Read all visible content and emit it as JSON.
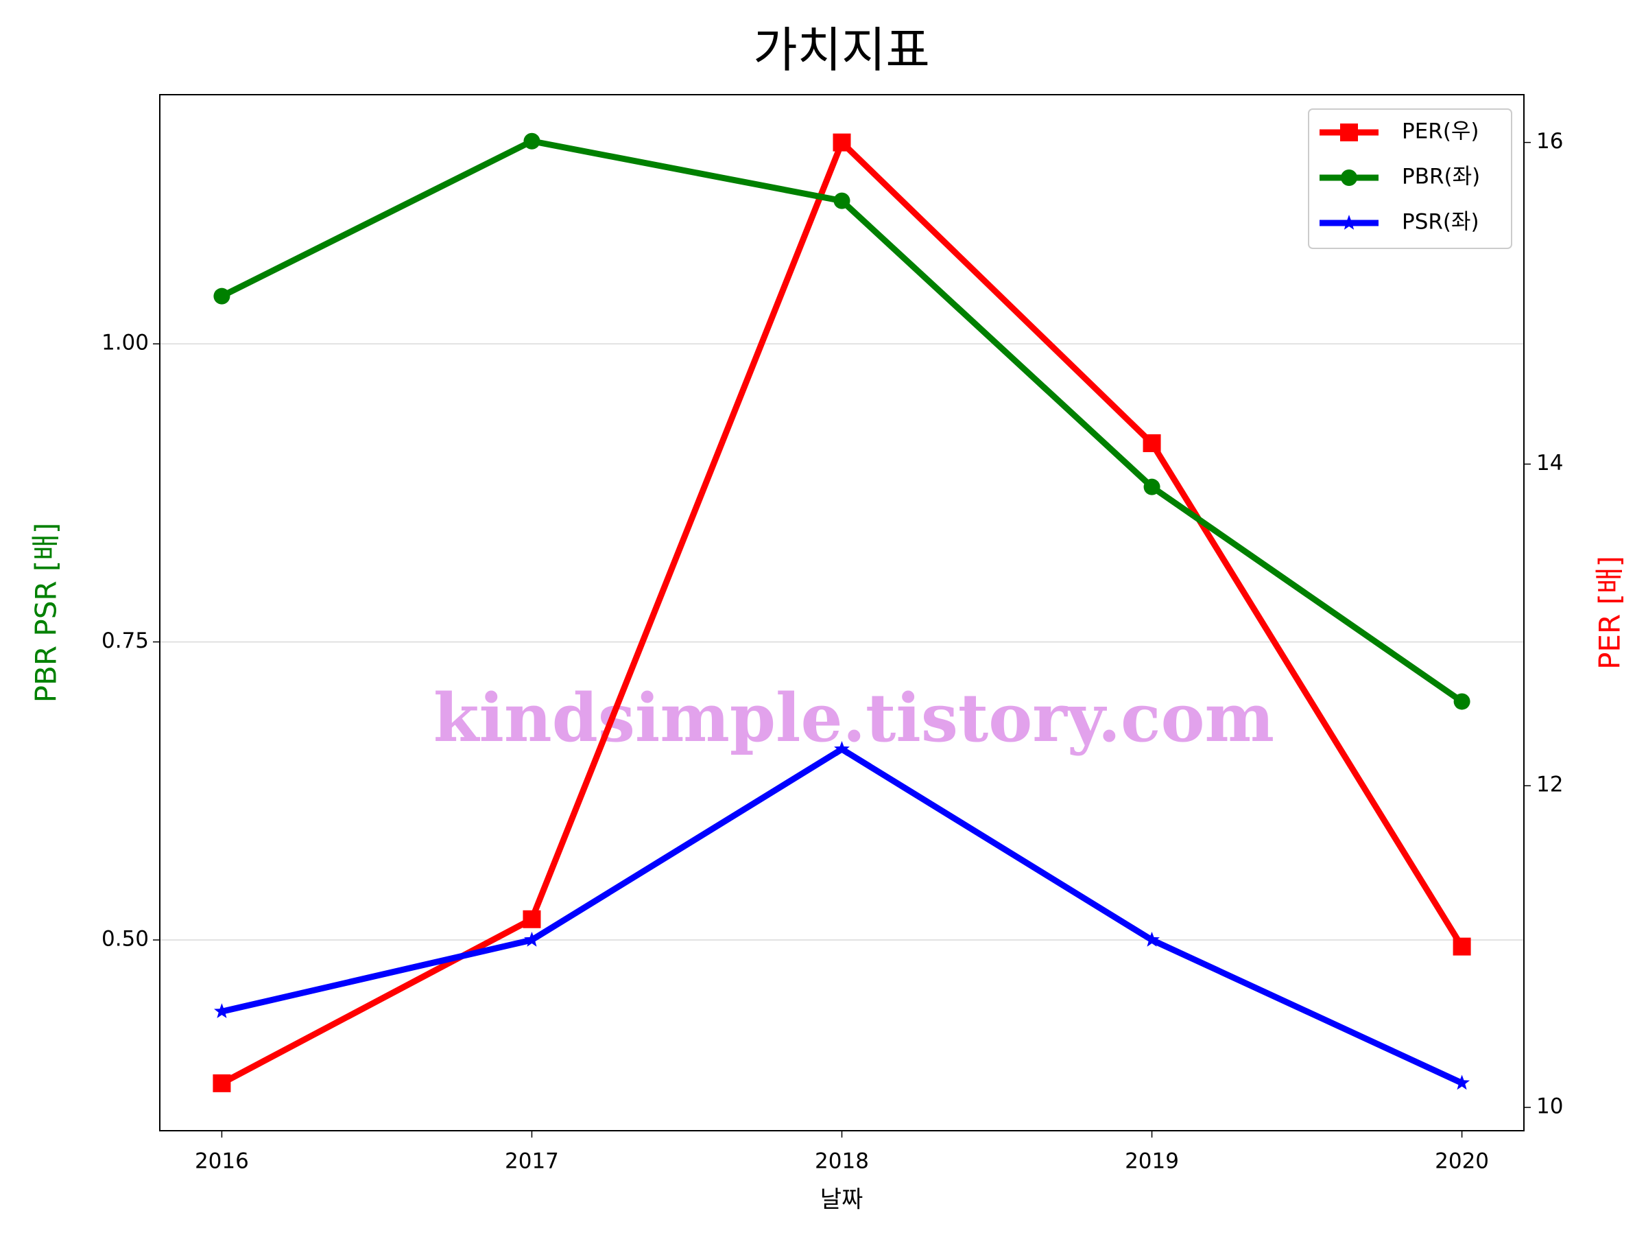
{
  "chart_data": {
    "type": "line",
    "title": "가치지표",
    "xlabel": "날짜",
    "ylabel": "PBR PSR [배]",
    "y2label": "PER [배]",
    "x": [
      2016,
      2017,
      2018,
      2019,
      2020
    ],
    "xlim": [
      2015.8,
      2020.2
    ],
    "xticks": [
      2016,
      2017,
      2018,
      2019,
      2020
    ],
    "ylim": [
      0.34,
      1.209
    ],
    "yticks": [
      {
        "value": 0.5,
        "label": "0.50"
      },
      {
        "value": 0.75,
        "label": "0.75"
      },
      {
        "value": 1.0,
        "label": "1.00"
      }
    ],
    "y2lim": [
      9.855,
      16.297
    ],
    "y2ticks": [
      10,
      12,
      14,
      16
    ],
    "grid": true,
    "legend": "upper right",
    "ylabel_color": "#008000",
    "y2label_color": "#ff0000",
    "annotation": "kindsimple.tistory.com",
    "series": [
      {
        "name": "PER(우)",
        "color": "#ff0000",
        "marker": "square",
        "axis": "y2",
        "values": [
          10.15,
          11.17,
          16.0,
          14.13,
          11.0
        ]
      },
      {
        "name": "PBR(좌)",
        "color": "#008000",
        "marker": "circle",
        "values": [
          1.04,
          1.17,
          1.12,
          0.88,
          0.7
        ]
      },
      {
        "name": "PSR(좌)",
        "color": "#0000ff",
        "marker": "star",
        "values": [
          0.44,
          0.5,
          0.66,
          0.5,
          0.38
        ]
      }
    ]
  }
}
